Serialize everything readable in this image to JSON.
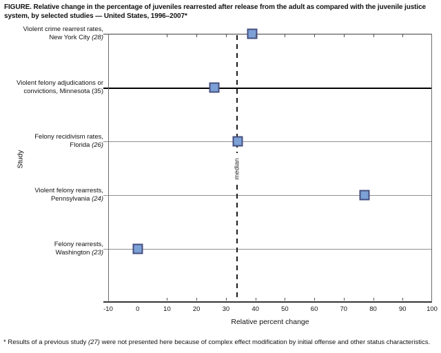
{
  "title": "FIGURE. Relative change in the percentage of juveniles rearrested after release from the adult as compared with the juvenile justice system, by selected studies — United States, 1996–2007*",
  "footnote": {
    "prefix": "* Results of a previous study ",
    "ref": "(27)",
    "suffix": " were not presented here because of complex effect modification by initial offense and other status characteristics."
  },
  "chart_data": {
    "type": "scatter",
    "title": "Relative change in the percentage of juveniles rearrested after release from the adult as compared with the juvenile justice system, by selected studies — United States, 1996–2007",
    "xlabel": "Relative percent change",
    "ylabel": "Study",
    "xlim": [
      -10,
      100
    ],
    "xticks": [
      -10,
      0,
      10,
      20,
      30,
      40,
      50,
      60,
      70,
      80,
      90,
      100
    ],
    "grid": "horizontal-row-lines",
    "median_line": {
      "value": 33.7,
      "label": "median",
      "style": "dashed"
    },
    "marker_style": {
      "shape": "square",
      "fill": "#7ca1d7",
      "border": "#454f80"
    },
    "studies": [
      {
        "line1": "Violent crime rearrest rates,",
        "line2": "New York City ",
        "ref": "(28)",
        "ref_italic": true,
        "value": 39
      },
      {
        "line1": "Violent felony adjudications or",
        "line2": "convictions, Minnesota ",
        "ref": "(35)",
        "ref_italic": false,
        "value": 26
      },
      {
        "line1": "Felony recidivism rates,",
        "line2": "Florida ",
        "ref": "(26)",
        "ref_italic": true,
        "value": 34
      },
      {
        "line1": "Violent felony rearrests,",
        "line2": "Pennsylvania ",
        "ref": "(24)",
        "ref_italic": true,
        "value": 77
      },
      {
        "line1": "Felony rearrests,",
        "line2": "Washington ",
        "ref": "(23)",
        "ref_italic": true,
        "value": 0
      }
    ]
  }
}
